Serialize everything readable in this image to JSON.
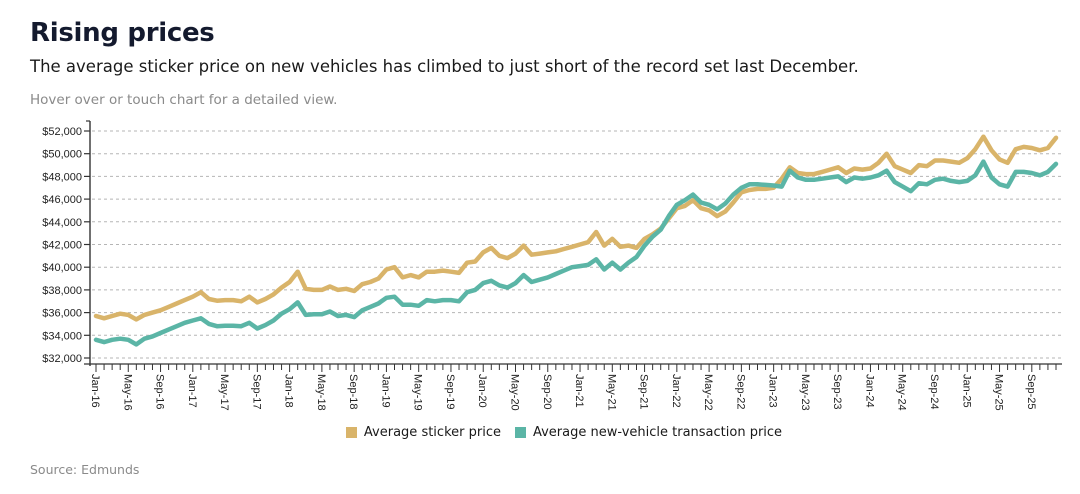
{
  "header": {
    "title": "Rising prices",
    "subtitle": "The average sticker price on new vehicles has climbed to just short of the record set last December.",
    "hint": "Hover over or touch chart for a detailed view."
  },
  "footer": {
    "source": "Source: Edmunds"
  },
  "colors": {
    "sticker": "#d9b46a",
    "transaction": "#5bb5a6",
    "grid": "#b5b5b5",
    "axis": "#333333"
  },
  "chart_data": {
    "type": "line",
    "title": "Rising prices",
    "xlabel": "",
    "ylabel": "",
    "ylim": [
      32000,
      52000
    ],
    "yticks": [
      32000,
      34000,
      36000,
      38000,
      40000,
      42000,
      44000,
      46000,
      48000,
      50000,
      52000
    ],
    "ytick_labels": [
      "$32,000",
      "$34,000",
      "$36,000",
      "$38,000",
      "$40,000",
      "$42,000",
      "$44,000",
      "$46,000",
      "$48,000",
      "$50,000",
      "$52,000"
    ],
    "grid": true,
    "legend_position": "bottom-center",
    "start": "Jan-16",
    "xtick_labels": [
      "Jan-16",
      "May-16",
      "Sep-16",
      "Jan-17",
      "May-17",
      "Sep-17",
      "Jan-18",
      "May-18",
      "Sep-18",
      "Jan-19",
      "May-19",
      "Sep-19",
      "Jan-20",
      "May-20",
      "Sep-20",
      "Jan-21",
      "May-21",
      "Sep-21",
      "Jan-22",
      "May-22",
      "Sep-22",
      "Jan-23",
      "May-23",
      "Sep-23",
      "Jan-24",
      "May-24",
      "Sep-24",
      "Jan-25",
      "May-25",
      "Sep-25"
    ],
    "series": [
      {
        "name": "Average sticker price",
        "color": "#d9b46a",
        "values": [
          35700,
          35500,
          35700,
          35900,
          35800,
          35400,
          35800,
          36000,
          36200,
          36500,
          36800,
          37100,
          37400,
          37800,
          37200,
          37050,
          37100,
          37100,
          37000,
          37400,
          36900,
          37200,
          37600,
          38200,
          38700,
          39600,
          38100,
          38000,
          38000,
          38300,
          38000,
          38100,
          37900,
          38500,
          38700,
          39000,
          39800,
          40000,
          39100,
          39300,
          39100,
          39600,
          39600,
          39700,
          39600,
          39500,
          40400,
          40500,
          41300,
          41700,
          41000,
          40800,
          41200,
          41900,
          41100,
          41200,
          41300,
          41400,
          41600,
          41800,
          42000,
          42200,
          43100,
          41900,
          42500,
          41800,
          41900,
          41700,
          42500,
          42900,
          43400,
          44300,
          45200,
          45400,
          45900,
          45200,
          45000,
          44500,
          44900,
          45700,
          46600,
          46800,
          46900,
          46900,
          47000,
          47800,
          48800,
          48300,
          48200,
          48200,
          48400,
          48600,
          48800,
          48300,
          48700,
          48600,
          48700,
          49200,
          50000,
          48900,
          48600,
          48300,
          49000,
          48900,
          49400,
          49400,
          49300,
          49200,
          49600,
          50400,
          51500,
          50300,
          49500,
          49200,
          50400,
          50600,
          50500,
          50300,
          50500,
          51400
        ]
      },
      {
        "name": "Average new-vehicle transaction price",
        "color": "#5bb5a6",
        "values": [
          33600,
          33400,
          33600,
          33700,
          33600,
          33200,
          33700,
          33900,
          34200,
          34500,
          34800,
          35100,
          35300,
          35500,
          35000,
          34800,
          34850,
          34850,
          34800,
          35100,
          34600,
          34900,
          35300,
          35900,
          36300,
          36900,
          35800,
          35850,
          35850,
          36100,
          35700,
          35800,
          35600,
          36200,
          36500,
          36800,
          37300,
          37400,
          36700,
          36700,
          36600,
          37100,
          37000,
          37100,
          37100,
          37000,
          37800,
          38000,
          38600,
          38800,
          38400,
          38200,
          38600,
          39300,
          38700,
          38900,
          39100,
          39400,
          39700,
          40000,
          40100,
          40200,
          40700,
          39800,
          40400,
          39800,
          40400,
          40900,
          41900,
          42700,
          43300,
          44500,
          45500,
          45900,
          46400,
          45700,
          45500,
          45100,
          45600,
          46400,
          47000,
          47300,
          47300,
          47250,
          47200,
          47100,
          48500,
          47900,
          47700,
          47700,
          47800,
          47900,
          48000,
          47500,
          47900,
          47800,
          47900,
          48100,
          48500,
          47500,
          47100,
          46700,
          47400,
          47300,
          47700,
          47800,
          47600,
          47500,
          47600,
          48100,
          49300,
          47900,
          47300,
          47100,
          48400,
          48400,
          48300,
          48100,
          48400,
          49100
        ]
      }
    ]
  },
  "legend": {
    "items": [
      {
        "label": "Average sticker price",
        "color": "#d9b46a"
      },
      {
        "label": "Average new-vehicle transaction price",
        "color": "#5bb5a6"
      }
    ]
  }
}
